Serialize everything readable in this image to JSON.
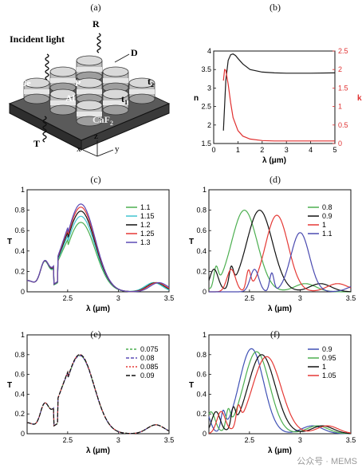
{
  "labels": {
    "a": "(a)",
    "b": "(b)",
    "c": "(c)",
    "d": "(d)",
    "e": "(e)",
    "f": "(f)"
  },
  "diagram": {
    "incident_light": "Incident light",
    "R": "R",
    "D": "D",
    "Ge": "Ge",
    "P": "P",
    "t2": "t",
    "t2_sub": "2",
    "Al": "Al",
    "t1": "t",
    "t1_sub": "1",
    "CaF2": "CaF",
    "CaF2_sub": "2",
    "T": "T",
    "x": "x",
    "y": "y",
    "z": "z"
  },
  "watermark": "公众号 · MEMS",
  "chart_data": [
    {
      "id": "b",
      "type": "line",
      "xlabel": "λ (μm)",
      "ylabel": "n",
      "y2label": "k",
      "xlim": [
        0,
        5
      ],
      "ylim": [
        1.5,
        4
      ],
      "y2lim": [
        0,
        2.5
      ],
      "xticks": [
        "0",
        "1",
        "2",
        "3",
        "4",
        "5"
      ],
      "yticks": [
        "1.5",
        "2",
        "2.5",
        "3",
        "3.5",
        "4"
      ],
      "y2ticks": [
        "0",
        "0.5",
        "1",
        "1.5",
        "2",
        "2.5"
      ],
      "series": [
        {
          "axis": "left",
          "color": "#1a1a1a",
          "x": [
            0.4,
            0.5,
            0.6,
            0.7,
            0.8,
            0.9,
            1.0,
            1.2,
            1.5,
            2.0,
            2.5,
            3.0,
            4.0,
            5.0
          ],
          "y": [
            1.85,
            3.2,
            3.75,
            3.9,
            3.92,
            3.88,
            3.8,
            3.65,
            3.5,
            3.43,
            3.41,
            3.4,
            3.4,
            3.41
          ]
        },
        {
          "axis": "right",
          "color": "#e03030",
          "x": [
            0.4,
            0.45,
            0.5,
            0.6,
            0.7,
            0.8,
            1.0,
            1.2,
            1.5,
            2.0,
            2.5,
            3.0,
            4.0,
            5.0
          ],
          "y": [
            1.7,
            2.0,
            1.98,
            1.6,
            1.1,
            0.7,
            0.35,
            0.2,
            0.12,
            0.08,
            0.07,
            0.07,
            0.07,
            0.07
          ]
        }
      ]
    },
    {
      "id": "c",
      "type": "line",
      "xlabel": "λ (μm)",
      "ylabel": "T",
      "xlim": [
        2.1,
        3.5
      ],
      "ylim": [
        0,
        1
      ],
      "xticks": [
        "2.5",
        "3",
        "3.5"
      ],
      "yticks": [
        "0",
        "0.2",
        "0.4",
        "0.6",
        "0.8",
        "1"
      ],
      "series": [
        {
          "name": "1.1",
          "color": "#4caf50",
          "peak_x": 2.63,
          "peak_y": 0.68,
          "dip_x": 3.1
        },
        {
          "name": "1.15",
          "color": "#40c4d0",
          "peak_x": 2.63,
          "peak_y": 0.74,
          "dip_x": 3.1
        },
        {
          "name": "1.2",
          "color": "#111111",
          "peak_x": 2.63,
          "peak_y": 0.79,
          "dip_x": 3.12
        },
        {
          "name": "1.25",
          "color": "#e53935",
          "peak_x": 2.63,
          "peak_y": 0.83,
          "dip_x": 3.13
        },
        {
          "name": "1.3",
          "color": "#5c4bb5",
          "peak_x": 2.63,
          "peak_y": 0.86,
          "dip_x": 3.15
        }
      ]
    },
    {
      "id": "d",
      "type": "line",
      "xlabel": "λ (μm)",
      "ylabel": "T",
      "xlim": [
        2.1,
        3.5
      ],
      "ylim": [
        0,
        1
      ],
      "xticks": [
        "2.5",
        "3",
        "3.5"
      ],
      "yticks": [
        "0",
        "0.2",
        "0.4",
        "0.6",
        "0.8",
        "1"
      ],
      "series": [
        {
          "name": "0.8",
          "color": "#4caf50",
          "peak_x": 2.45,
          "peak_y": 0.8,
          "width": 0.18
        },
        {
          "name": "0.9",
          "color": "#111111",
          "peak_x": 2.6,
          "peak_y": 0.8,
          "width": 0.18
        },
        {
          "name": "1",
          "color": "#e53935",
          "peak_x": 2.77,
          "peak_y": 0.75,
          "width": 0.16
        },
        {
          "name": "1.1",
          "color": "#4a4ab0",
          "peak_x": 3.0,
          "peak_y": 0.58,
          "width": 0.13
        }
      ]
    },
    {
      "id": "e",
      "type": "line",
      "xlabel": "λ (μm)",
      "ylabel": "T",
      "xlim": [
        2.1,
        3.5
      ],
      "ylim": [
        0,
        1
      ],
      "xticks": [
        "2.5",
        "3",
        "3.5"
      ],
      "yticks": [
        "0",
        "0.2",
        "0.4",
        "0.6",
        "0.8",
        "1"
      ],
      "series": [
        {
          "name": "0.075",
          "color": "#4caf50",
          "dash": "3,2",
          "peak_x": 2.62,
          "peak_y": 0.79
        },
        {
          "name": "0.08",
          "color": "#5c4bb5",
          "dash": "4,2",
          "peak_x": 2.62,
          "peak_y": 0.79
        },
        {
          "name": "0.085",
          "color": "#e53935",
          "dash": "2,2",
          "peak_x": 2.62,
          "peak_y": 0.8
        },
        {
          "name": "0.09",
          "color": "#111111",
          "dash": "5,2",
          "peak_x": 2.62,
          "peak_y": 0.8
        }
      ]
    },
    {
      "id": "f",
      "type": "line",
      "xlabel": "λ (μm)",
      "ylabel": "T",
      "xlim": [
        2.1,
        3.5
      ],
      "ylim": [
        0,
        1
      ],
      "xticks": [
        "2.5",
        "3",
        "3.5"
      ],
      "yticks": [
        "0",
        "0.2",
        "0.4",
        "0.6",
        "0.8",
        "1"
      ],
      "series": [
        {
          "name": "0.9",
          "color": "#3f51b5",
          "peak_x": 2.52,
          "peak_y": 0.86,
          "width": 0.17
        },
        {
          "name": "0.95",
          "color": "#4caf50",
          "peak_x": 2.57,
          "peak_y": 0.83,
          "width": 0.18
        },
        {
          "name": "1",
          "color": "#111111",
          "peak_x": 2.62,
          "peak_y": 0.8,
          "width": 0.19
        },
        {
          "name": "1.05",
          "color": "#e53935",
          "peak_x": 2.67,
          "peak_y": 0.78,
          "width": 0.2
        }
      ]
    }
  ]
}
